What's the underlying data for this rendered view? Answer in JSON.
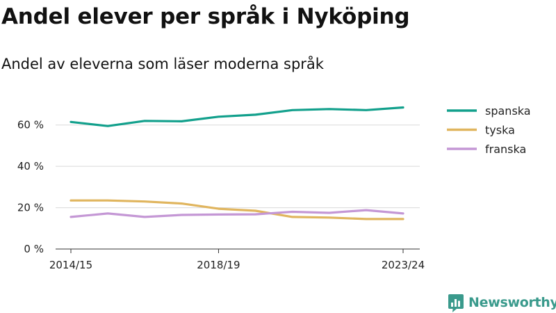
{
  "title": "Andel elever per språk i Nyköping",
  "subtitle": "Andel av eleverna som läser moderna språk",
  "brand": {
    "name": "Newsworthy",
    "color": "#3a9a8c"
  },
  "chart_data": {
    "type": "line",
    "x": [
      "2014/15",
      "2015/16",
      "2016/17",
      "2017/18",
      "2018/19",
      "2019/20",
      "2020/21",
      "2021/22",
      "2022/23",
      "2023/24"
    ],
    "x_tick_labels": [
      "2014/15",
      "2018/19",
      "2023/24"
    ],
    "y_ticks": [
      0,
      20,
      40,
      60
    ],
    "y_tick_labels": [
      "0 %",
      "20 %",
      "40 %",
      "60 %"
    ],
    "ylim": [
      0,
      70
    ],
    "grid": true,
    "legend_position": "right",
    "series": [
      {
        "name": "spanska",
        "color": "#12a08c",
        "values": [
          61.5,
          59.5,
          62,
          61.8,
          64,
          65,
          67.2,
          67.7,
          67.2,
          68.5
        ]
      },
      {
        "name": "tyska",
        "color": "#e0b55e",
        "values": [
          23.5,
          23.5,
          23,
          22,
          19.5,
          18.5,
          15.5,
          15.2,
          14.5,
          14.5
        ]
      },
      {
        "name": "franska",
        "color": "#c497d5",
        "values": [
          15.5,
          17.2,
          15.5,
          16.5,
          16.7,
          16.8,
          18,
          17.5,
          18.8,
          17.2
        ]
      }
    ]
  }
}
